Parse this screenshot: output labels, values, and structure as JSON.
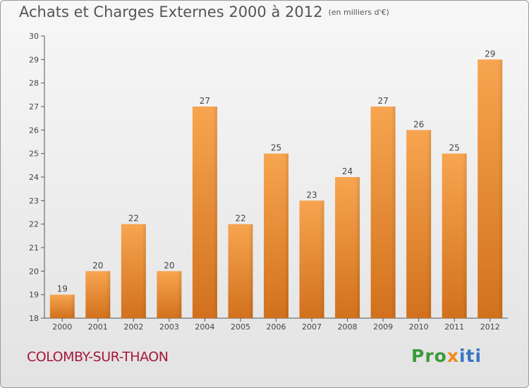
{
  "title": "Achats et Charges Externes 2000 à 2012",
  "unit": "(en milliers d'€)",
  "town": "COLOMBY-SUR-THAON",
  "logo": {
    "part1": "Pro",
    "part2": "x",
    "part3": "iti"
  },
  "colors": {
    "bar_top": "#f7a550",
    "bar_bottom": "#d2711d",
    "town": "#a5173b"
  },
  "chart_data": {
    "type": "bar",
    "categories": [
      "2000",
      "2001",
      "2002",
      "2003",
      "2004",
      "2005",
      "2006",
      "2007",
      "2008",
      "2009",
      "2010",
      "2011",
      "2012"
    ],
    "values": [
      19,
      20,
      22,
      20,
      27,
      22,
      25,
      23,
      24,
      27,
      26,
      25,
      29
    ],
    "ylim": [
      18,
      30
    ],
    "yticks": [
      18,
      19,
      20,
      21,
      22,
      23,
      24,
      25,
      26,
      27,
      28,
      29,
      30
    ],
    "grid": false,
    "xlabel": "",
    "ylabel": ""
  }
}
